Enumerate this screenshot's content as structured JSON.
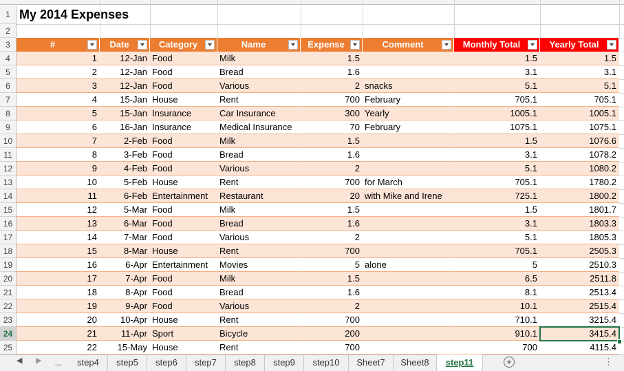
{
  "title": "My 2014 Expenses",
  "row_numbers": [
    1,
    2,
    3,
    4,
    5,
    6,
    7,
    8,
    9,
    10,
    11,
    12,
    13,
    14,
    15,
    16,
    17,
    18,
    19,
    20,
    21,
    22,
    23,
    24,
    25
  ],
  "table": {
    "header": [
      "#",
      "Date",
      "Category",
      "Name",
      "Expense",
      "Comment",
      "Monthly Total",
      "Yearly Total"
    ],
    "rows": [
      [
        1,
        "12-Jan",
        "Food",
        "Milk",
        1.5,
        "",
        1.5,
        1.5
      ],
      [
        2,
        "12-Jan",
        "Food",
        "Bread",
        1.6,
        "",
        3.1,
        3.1
      ],
      [
        3,
        "12-Jan",
        "Food",
        "Various",
        2,
        "snacks",
        5.1,
        5.1
      ],
      [
        4,
        "15-Jan",
        "House",
        "Rent",
        700,
        "February",
        705.1,
        705.1
      ],
      [
        5,
        "15-Jan",
        "Insurance",
        "Car Insurance",
        300,
        "Yearly",
        1005.1,
        1005.1
      ],
      [
        6,
        "16-Jan",
        "Insurance",
        "Medical Insurance",
        70,
        "February",
        1075.1,
        1075.1
      ],
      [
        7,
        "2-Feb",
        "Food",
        "Milk",
        1.5,
        "",
        1.5,
        1076.6
      ],
      [
        8,
        "3-Feb",
        "Food",
        "Bread",
        1.6,
        "",
        3.1,
        1078.2
      ],
      [
        9,
        "4-Feb",
        "Food",
        "Various",
        2,
        "",
        5.1,
        1080.2
      ],
      [
        10,
        "5-Feb",
        "House",
        "Rent",
        700,
        "for March",
        705.1,
        1780.2
      ],
      [
        11,
        "6-Feb",
        "Entertainment",
        "Restaurant",
        20,
        "with Mike and Irene",
        725.1,
        1800.2
      ],
      [
        12,
        "5-Mar",
        "Food",
        "Milk",
        1.5,
        "",
        1.5,
        1801.7
      ],
      [
        13,
        "6-Mar",
        "Food",
        "Bread",
        1.6,
        "",
        3.1,
        1803.3
      ],
      [
        14,
        "7-Mar",
        "Food",
        "Various",
        2,
        "",
        5.1,
        1805.3
      ],
      [
        15,
        "8-Mar",
        "House",
        "Rent",
        700,
        "",
        705.1,
        2505.3
      ],
      [
        16,
        "6-Apr",
        "Entertainment",
        "Movies",
        5,
        "alone",
        5,
        2510.3
      ],
      [
        17,
        "7-Apr",
        "Food",
        "Milk",
        1.5,
        "",
        6.5,
        2511.8
      ],
      [
        18,
        "8-Apr",
        "Food",
        "Bread",
        1.6,
        "",
        8.1,
        2513.4
      ],
      [
        19,
        "9-Apr",
        "Food",
        "Various",
        2,
        "",
        10.1,
        2515.4
      ],
      [
        20,
        "10-Apr",
        "House",
        "Rent",
        700,
        "",
        710.1,
        3215.4
      ],
      [
        21,
        "11-Apr",
        "Sport",
        "Bicycle",
        200,
        "",
        910.1,
        3415.4
      ],
      [
        22,
        "15-May",
        "House",
        "Rent",
        700,
        "",
        700,
        4115.4
      ]
    ]
  },
  "tabs": [
    "...",
    "step4",
    "step5",
    "step6",
    "step7",
    "step8",
    "step9",
    "step10",
    "Sheet7",
    "Sheet8",
    "step11"
  ]
}
